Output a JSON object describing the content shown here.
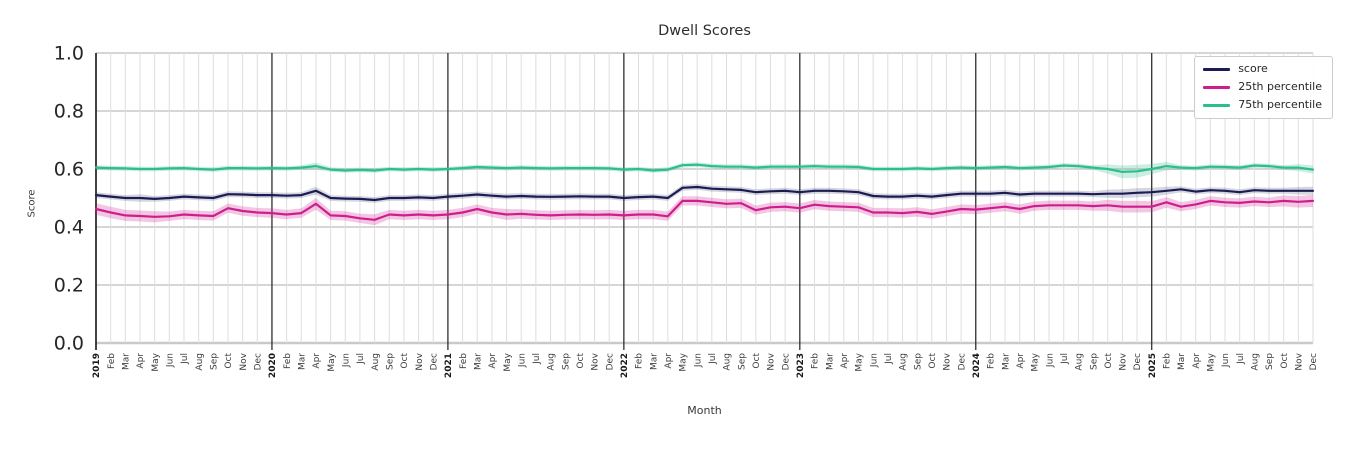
{
  "chart_data": {
    "type": "line",
    "title": "Dwell Scores",
    "xlabel": "Month",
    "ylabel": "Score",
    "ylim": [
      0.0,
      1.0
    ],
    "yticks": [
      "0.0",
      "0.2",
      "0.4",
      "0.6",
      "0.8",
      "1.0"
    ],
    "grid": true,
    "legend_position": "upper right",
    "x_labels": [
      "2019",
      "Feb",
      "Mar",
      "Apr",
      "May",
      "Jun",
      "Jul",
      "Aug",
      "Sep",
      "Oct",
      "Nov",
      "Dec",
      "2020",
      "Feb",
      "Mar",
      "Apr",
      "May",
      "Jun",
      "Jul",
      "Aug",
      "Sep",
      "Oct",
      "Nov",
      "Dec",
      "2021",
      "Feb",
      "Mar",
      "Apr",
      "May",
      "Jun",
      "Jul",
      "Aug",
      "Sep",
      "Oct",
      "Nov",
      "Dec",
      "2022",
      "Feb",
      "Mar",
      "Apr",
      "May",
      "Jun",
      "Jul",
      "Aug",
      "Sep",
      "Oct",
      "Nov",
      "Dec",
      "2023",
      "Feb",
      "Mar",
      "Apr",
      "May",
      "Jun",
      "Jul",
      "Aug",
      "Sep",
      "Oct",
      "Nov",
      "Dec",
      "2024",
      "Feb",
      "Mar",
      "Apr",
      "May",
      "Jun",
      "Jul",
      "Aug",
      "Sep",
      "Oct",
      "Nov",
      "Dec",
      "2025",
      "Feb",
      "Mar",
      "Apr",
      "May",
      "Jun",
      "Jul",
      "Aug",
      "Sep",
      "Oct",
      "Nov",
      "Dec"
    ],
    "series": [
      {
        "name": "score",
        "color": "#1c1c54",
        "band_opacity": 0.18,
        "band_default": 0.01,
        "band_overrides": {
          "3": 0.013,
          "15": 0.014,
          "69": 0.014,
          "70": 0.015,
          "71": 0.016,
          "72": 0.015,
          "73": 0.014,
          "82": 0.013,
          "83": 0.014
        },
        "values": [
          0.51,
          0.505,
          0.5,
          0.5,
          0.497,
          0.5,
          0.505,
          0.502,
          0.5,
          0.513,
          0.512,
          0.51,
          0.51,
          0.508,
          0.51,
          0.525,
          0.5,
          0.498,
          0.497,
          0.493,
          0.5,
          0.5,
          0.502,
          0.5,
          0.505,
          0.508,
          0.512,
          0.508,
          0.505,
          0.507,
          0.505,
          0.504,
          0.505,
          0.506,
          0.505,
          0.505,
          0.5,
          0.503,
          0.505,
          0.5,
          0.535,
          0.538,
          0.532,
          0.53,
          0.528,
          0.52,
          0.523,
          0.525,
          0.52,
          0.525,
          0.525,
          0.523,
          0.52,
          0.507,
          0.505,
          0.505,
          0.508,
          0.505,
          0.51,
          0.515,
          0.515,
          0.515,
          0.518,
          0.512,
          0.515,
          0.515,
          0.515,
          0.515,
          0.513,
          0.515,
          0.515,
          0.518,
          0.52,
          0.525,
          0.53,
          0.522,
          0.527,
          0.525,
          0.52,
          0.527,
          0.525,
          0.525,
          0.525,
          0.525
        ]
      },
      {
        "name": "25th percentile",
        "color": "#ce1e8e",
        "band_opacity": 0.25,
        "band_default": 0.016,
        "band_overrides": {
          "0": 0.02,
          "1": 0.02,
          "2": 0.019,
          "3": 0.019,
          "4": 0.019,
          "15": 0.02,
          "19": 0.019,
          "28": 0.019,
          "69": 0.019,
          "70": 0.02,
          "71": 0.02,
          "72": 0.019,
          "73": 0.018,
          "81": 0.019,
          "82": 0.02,
          "83": 0.021
        },
        "values": [
          0.462,
          0.45,
          0.44,
          0.438,
          0.435,
          0.437,
          0.443,
          0.44,
          0.438,
          0.465,
          0.455,
          0.45,
          0.448,
          0.443,
          0.448,
          0.48,
          0.44,
          0.438,
          0.43,
          0.425,
          0.443,
          0.44,
          0.443,
          0.44,
          0.443,
          0.45,
          0.462,
          0.45,
          0.443,
          0.445,
          0.442,
          0.44,
          0.442,
          0.443,
          0.442,
          0.443,
          0.44,
          0.443,
          0.443,
          0.437,
          0.49,
          0.49,
          0.485,
          0.48,
          0.482,
          0.458,
          0.468,
          0.47,
          0.465,
          0.477,
          0.472,
          0.47,
          0.468,
          0.45,
          0.45,
          0.448,
          0.452,
          0.445,
          0.453,
          0.462,
          0.46,
          0.465,
          0.47,
          0.462,
          0.472,
          0.475,
          0.475,
          0.475,
          0.472,
          0.475,
          0.47,
          0.47,
          0.47,
          0.485,
          0.47,
          0.478,
          0.49,
          0.485,
          0.483,
          0.488,
          0.485,
          0.49,
          0.487,
          0.49
        ]
      },
      {
        "name": "75th percentile",
        "color": "#2ebd8f",
        "band_opacity": 0.25,
        "band_default": 0.008,
        "band_overrides": {
          "15": 0.012,
          "69": 0.016,
          "70": 0.022,
          "71": 0.022,
          "72": 0.018,
          "73": 0.014,
          "82": 0.012,
          "83": 0.014
        },
        "values": [
          0.605,
          0.603,
          0.602,
          0.6,
          0.6,
          0.602,
          0.603,
          0.6,
          0.598,
          0.603,
          0.603,
          0.602,
          0.603,
          0.602,
          0.605,
          0.61,
          0.598,
          0.595,
          0.597,
          0.595,
          0.6,
          0.598,
          0.6,
          0.598,
          0.6,
          0.603,
          0.607,
          0.605,
          0.603,
          0.605,
          0.603,
          0.602,
          0.603,
          0.603,
          0.603,
          0.602,
          0.598,
          0.6,
          0.595,
          0.598,
          0.613,
          0.615,
          0.61,
          0.608,
          0.608,
          0.605,
          0.608,
          0.608,
          0.608,
          0.61,
          0.608,
          0.608,
          0.607,
          0.6,
          0.6,
          0.6,
          0.602,
          0.6,
          0.603,
          0.605,
          0.603,
          0.605,
          0.607,
          0.603,
          0.605,
          0.607,
          0.612,
          0.61,
          0.605,
          0.6,
          0.59,
          0.592,
          0.6,
          0.61,
          0.605,
          0.603,
          0.608,
          0.607,
          0.605,
          0.612,
          0.61,
          0.605,
          0.605,
          0.598
        ]
      }
    ]
  },
  "colors": {
    "hgrid": "#c9c9c9",
    "vgrid": "#dedede",
    "year_line": "#2f2f2f",
    "spine": "#222222",
    "axis_text": "#262626",
    "tick_text": "#3c3c3c",
    "year_text": "#1a1a1a"
  }
}
